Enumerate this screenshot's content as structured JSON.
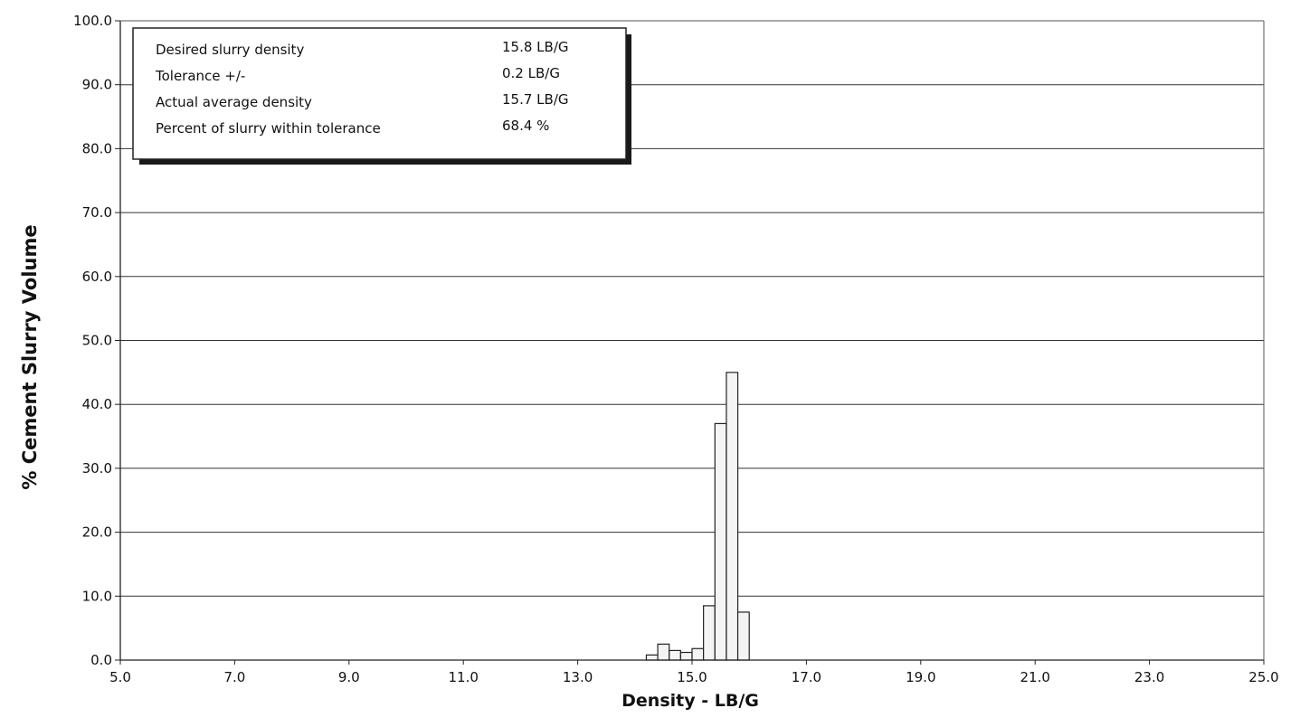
{
  "chart_data": {
    "type": "bar",
    "title": "",
    "xlabel": "Density - LB/G",
    "ylabel": "% Cement Slurry Volume",
    "xlim": [
      5.0,
      25.0
    ],
    "ylim": [
      0.0,
      100.0
    ],
    "x_ticks": [
      "5.0",
      "7.0",
      "9.0",
      "11.0",
      "13.0",
      "15.0",
      "17.0",
      "19.0",
      "21.0",
      "23.0",
      "25.0"
    ],
    "y_ticks": [
      "0.0",
      "10.0",
      "20.0",
      "30.0",
      "40.0",
      "50.0",
      "60.0",
      "70.0",
      "80.0",
      "90.0",
      "100.0"
    ],
    "grid": "horizontal",
    "bin_width": 0.2,
    "bars": [
      {
        "x": 14.2,
        "value": 0.8
      },
      {
        "x": 14.4,
        "value": 2.5
      },
      {
        "x": 14.6,
        "value": 1.5
      },
      {
        "x": 14.8,
        "value": 1.2
      },
      {
        "x": 15.0,
        "value": 1.8
      },
      {
        "x": 15.2,
        "value": 8.5
      },
      {
        "x": 15.4,
        "value": 37.0
      },
      {
        "x": 15.6,
        "value": 45.0
      },
      {
        "x": 15.8,
        "value": 7.5
      }
    ],
    "info_box": {
      "placement": "top-left",
      "rows": [
        {
          "label": "Desired slurry density",
          "value": "15.8 LB/G"
        },
        {
          "label": "Tolerance +/-",
          "value": "0.2 LB/G"
        },
        {
          "label": "Actual average density",
          "value": "15.7 LB/G"
        },
        {
          "label": "Percent of slurry within tolerance",
          "value": "68.4 %"
        }
      ]
    }
  }
}
